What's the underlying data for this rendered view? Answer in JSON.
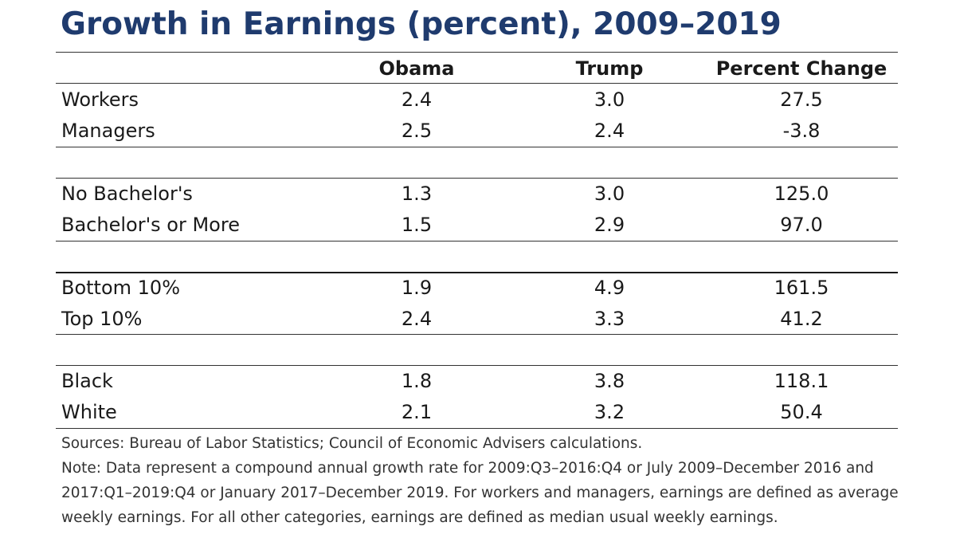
{
  "chart_data": {
    "type": "table",
    "title": "Growth in Earnings (percent), 2009–2019",
    "columns": [
      "",
      "Obama",
      "Trump",
      "Percent Change"
    ],
    "groups": [
      {
        "rows": [
          {
            "label": "Workers",
            "obama": "2.4",
            "trump": "3.0",
            "change": "27.5"
          },
          {
            "label": "Managers",
            "obama": "2.5",
            "trump": "2.4",
            "change": "-3.8"
          }
        ]
      },
      {
        "rows": [
          {
            "label": "No Bachelor's",
            "obama": "1.3",
            "trump": "3.0",
            "change": "125.0"
          },
          {
            "label": "Bachelor's or More",
            "obama": "1.5",
            "trump": "2.9",
            "change": "97.0"
          }
        ]
      },
      {
        "rows": [
          {
            "label": "Bottom 10%",
            "obama": "1.9",
            "trump": "4.9",
            "change": "161.5"
          },
          {
            "label": "Top 10%",
            "obama": "2.4",
            "trump": "3.3",
            "change": "41.2"
          }
        ]
      },
      {
        "rows": [
          {
            "label": "Black",
            "obama": "1.8",
            "trump": "3.8",
            "change": "118.1"
          },
          {
            "label": "White",
            "obama": "2.1",
            "trump": "3.2",
            "change": "50.4"
          }
        ]
      }
    ],
    "sources": "Sources: Bureau of Labor Statistics; Council of Economic Advisers calculations.",
    "note": "Note: Data represent a compound annual growth rate for 2009:Q3–2016:Q4 or July 2009–December 2016 and 2017:Q1–2019:Q4 or January 2017–December 2019. For workers and managers, earnings are defined as average weekly earnings. For all other categories, earnings are defined as median usual weekly earnings."
  }
}
